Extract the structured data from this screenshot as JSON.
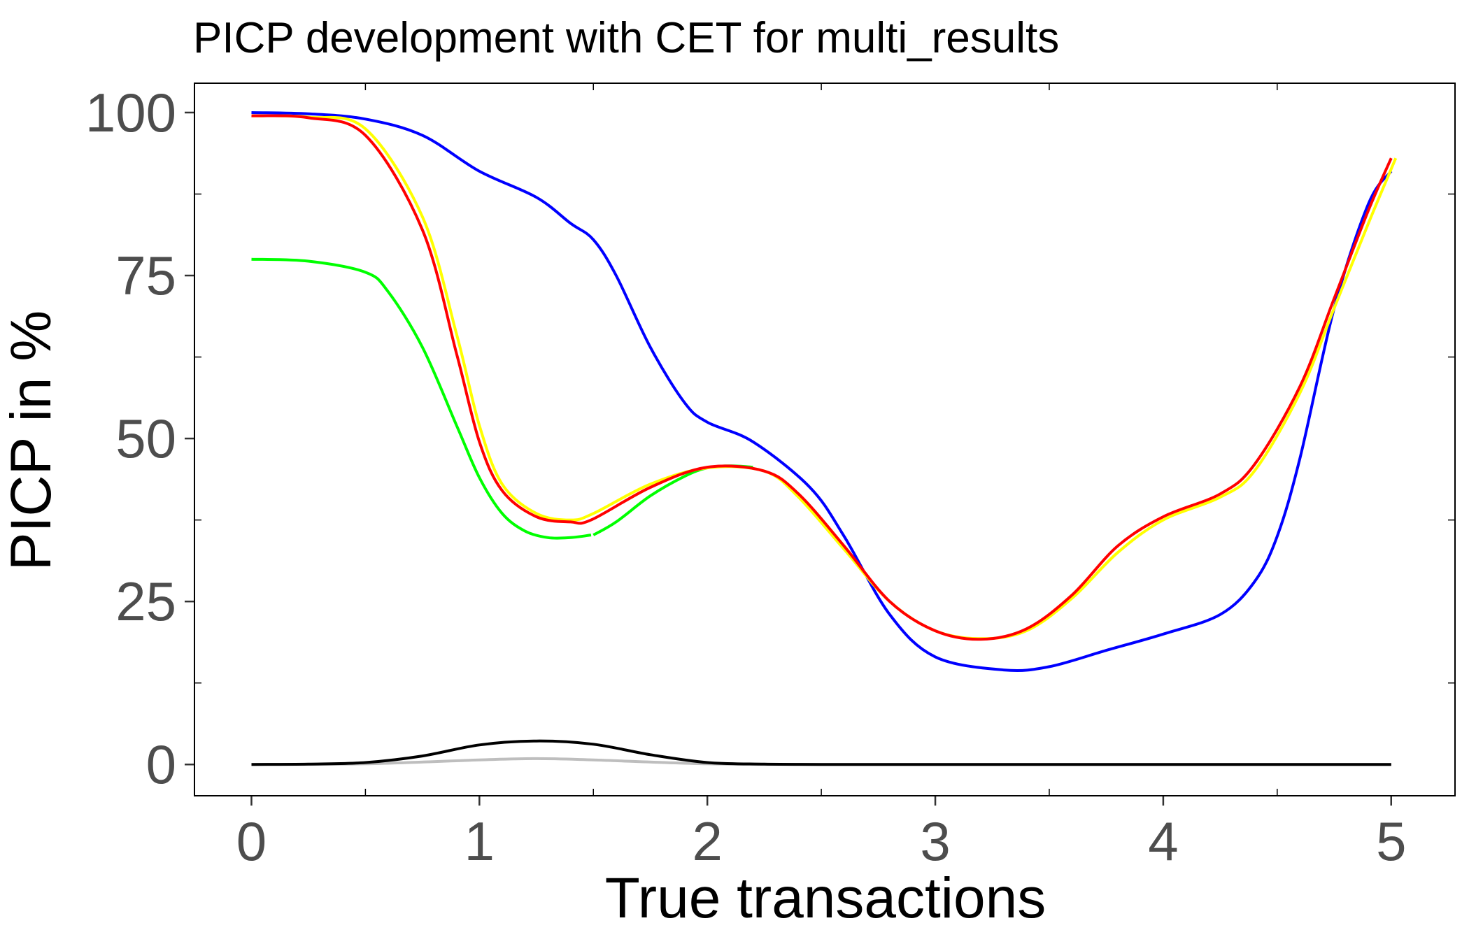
{
  "chart_data": {
    "type": "line",
    "title": "PICP development with CET for multi_results",
    "xlabel": "True transactions",
    "ylabel": "PICP in %",
    "xlim": [
      -0.25,
      5.28
    ],
    "ylim": [
      -4.8,
      104.5
    ],
    "x_ticks": [
      0,
      1,
      2,
      3,
      4,
      5
    ],
    "x_tick_labels": [
      "0",
      "1",
      "2",
      "3",
      "4",
      "5"
    ],
    "y_ticks": [
      0,
      25,
      50,
      75,
      100
    ],
    "y_tick_labels": [
      "0",
      "25",
      "50",
      "75",
      "100"
    ],
    "grid": false,
    "legend": "none",
    "series": [
      {
        "color": "#bebebe",
        "x": [
          0,
          0.5,
          1.0,
          1.25,
          1.5,
          2.0,
          2.5,
          3.0,
          3.5,
          4.0,
          4.5,
          5.0
        ],
        "y": [
          0,
          0.1,
          0.7,
          0.9,
          0.7,
          0.1,
          0,
          0,
          0,
          0,
          0,
          0
        ]
      },
      {
        "color": "#000000",
        "x": [
          0,
          0.25,
          0.5,
          0.75,
          1.0,
          1.25,
          1.5,
          1.75,
          2.0,
          2.25,
          2.5,
          3.0,
          3.5,
          4.0,
          4.5,
          5.0
        ],
        "y": [
          0,
          0.05,
          0.3,
          1.3,
          3.0,
          3.6,
          3.1,
          1.5,
          0.3,
          0.05,
          0,
          0,
          0,
          0,
          0,
          0
        ]
      },
      {
        "color": "#00ff00",
        "x": [
          0,
          0.25,
          0.5,
          0.6,
          0.75,
          0.9,
          1.0,
          1.1,
          1.2,
          1.3,
          1.4,
          1.49
        ],
        "y": [
          77.5,
          77.2,
          75.5,
          72.5,
          64.0,
          52.0,
          44.0,
          38.5,
          35.8,
          34.8,
          34.8,
          35.2
        ]
      },
      {
        "color": "#00ff00",
        "x": [
          1.5,
          1.6,
          1.75,
          1.9,
          2.0,
          2.1,
          2.2
        ],
        "y": [
          35.2,
          37.2,
          41.2,
          44.2,
          45.5,
          45.8,
          45.6
        ]
      },
      {
        "color": "#0000ff",
        "x": [
          0,
          0.25,
          0.5,
          0.75,
          1.0,
          1.25,
          1.4,
          1.5,
          1.6,
          1.75,
          1.9,
          2.0,
          2.2,
          2.45,
          2.6,
          2.8,
          3.0,
          3.3,
          3.5,
          3.75,
          4.0,
          4.25,
          4.4,
          4.5,
          4.6,
          4.75,
          4.9,
          5.0
        ],
        "y": [
          100,
          99.8,
          99.0,
          96.5,
          91.0,
          87.0,
          83.0,
          80.5,
          75.0,
          64.0,
          55.5,
          52.5,
          49.5,
          42.5,
          35.0,
          23.0,
          16.5,
          14.5,
          15.0,
          17.5,
          20.0,
          23.0,
          28.0,
          35.0,
          47.0,
          70.0,
          86.0,
          91.0
        ]
      },
      {
        "color": "#ffff00",
        "x": [
          0,
          0.25,
          0.5,
          0.75,
          0.9,
          1.0,
          1.1,
          1.25,
          1.4,
          1.5,
          1.75,
          2.0,
          2.25,
          2.4,
          2.6,
          2.8,
          3.0,
          3.2,
          3.4,
          3.6,
          3.8,
          4.0,
          4.25,
          4.4,
          4.6,
          4.75,
          4.9,
          5.02
        ],
        "y": [
          99.5,
          99.3,
          97.5,
          84.0,
          66.0,
          52.0,
          43.0,
          38.5,
          37.5,
          38.5,
          43.0,
          45.5,
          45.0,
          41.0,
          33.0,
          25.0,
          20.5,
          19.3,
          20.5,
          25.5,
          32.5,
          37.5,
          41.0,
          45.0,
          57.0,
          70.0,
          83.0,
          93.0
        ]
      },
      {
        "color": "#ff0000",
        "x": [
          0,
          0.25,
          0.5,
          0.75,
          0.9,
          1.0,
          1.1,
          1.25,
          1.4,
          1.49,
          1.75,
          2.0,
          2.25,
          2.4,
          2.6,
          2.8,
          3.0,
          3.2,
          3.4,
          3.6,
          3.8,
          4.0,
          4.25,
          4.4,
          4.6,
          4.75,
          4.9,
          5.0
        ],
        "y": [
          99.5,
          99.2,
          96.5,
          82.0,
          63.0,
          49.5,
          42.0,
          38.0,
          37.2,
          37.5,
          42.5,
          45.6,
          45.0,
          41.5,
          33.5,
          25.0,
          20.5,
          19.2,
          20.8,
          26.0,
          33.5,
          38.0,
          41.5,
          46.0,
          58.0,
          71.5,
          85.0,
          93.0
        ]
      }
    ]
  }
}
